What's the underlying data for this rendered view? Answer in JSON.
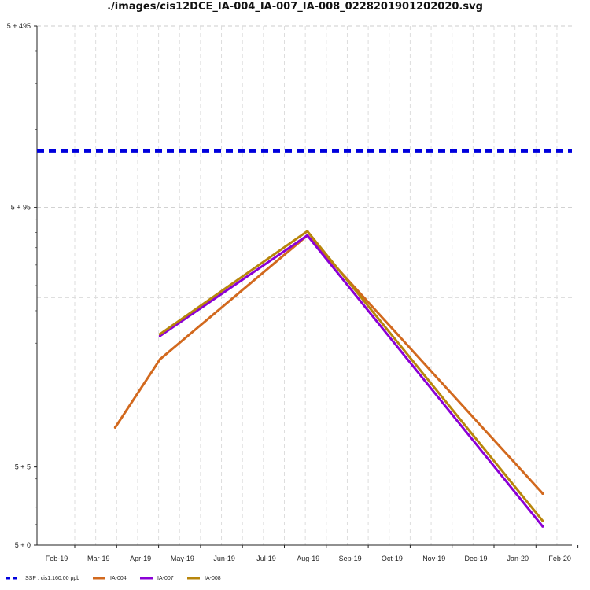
{
  "chart_data": {
    "type": "line",
    "title": "./images/cis12DCE_IA-004_IA-007_IA-008_0228201901202020.svg",
    "x_ticks": [
      "Feb-19",
      "Mar-19",
      "Apr-19",
      "May-19",
      "Jun-19",
      "Jul-19",
      "Aug-19",
      "Sep-19",
      "Oct-19",
      "Nov-19",
      "Dec-19",
      "Jan-20",
      "Feb-20"
    ],
    "y_ticks": [
      "5 + 0",
      "5 + 5",
      "5 + 95",
      "5 + 495"
    ],
    "y_scale": "log",
    "grid": true,
    "legend_position": "bottom-left",
    "reference_lines": [
      {
        "name": "SSP : cis1:160.00 ppb",
        "value": 160,
        "color": "#0000dd",
        "style": "dashed"
      }
    ],
    "series": [
      {
        "name": "IA-004",
        "color": "#d2691e",
        "points": [
          [
            "2019-02-28",
            9.2
          ],
          [
            "2019-04-02",
            21
          ],
          [
            "2019-07-18",
            73
          ],
          [
            "2020-01-06",
            2.9
          ]
        ]
      },
      {
        "name": "IA-007",
        "color": "#8b00d6",
        "points": [
          [
            "2019-04-02",
            27
          ],
          [
            "2019-07-18",
            73
          ],
          [
            "2020-01-06",
            0.9
          ]
        ]
      },
      {
        "name": "IA-008",
        "color": "#b8860b",
        "points": [
          [
            "2019-04-02",
            27.5
          ],
          [
            "2019-07-18",
            76
          ],
          [
            "2020-01-06",
            1.2
          ]
        ]
      }
    ],
    "legend": [
      "SSP : cis1:160.00 ppb",
      "IA-004",
      "IA-007",
      "IA-008"
    ]
  }
}
